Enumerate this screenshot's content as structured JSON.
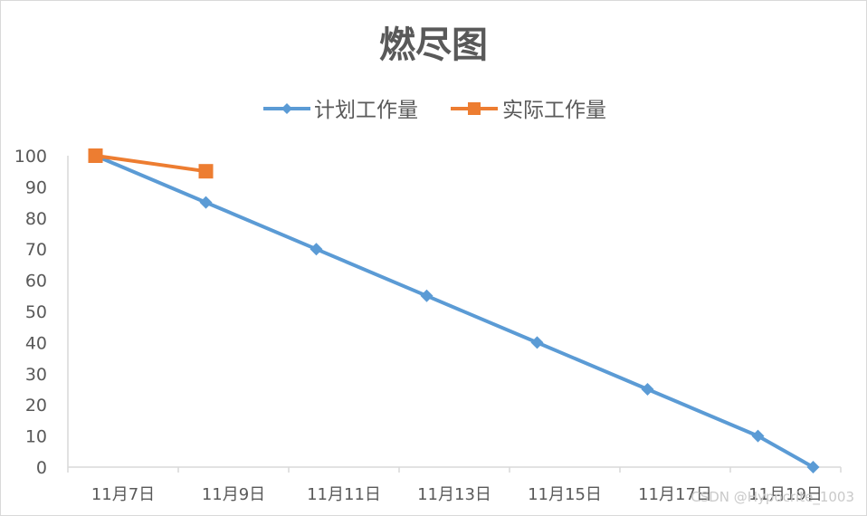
{
  "chart_data": {
    "type": "line",
    "title": "燃尽图",
    "xlabel": "",
    "ylabel": "",
    "ylim": [
      0,
      100
    ],
    "yticks": [
      "0",
      "10",
      "20",
      "30",
      "40",
      "50",
      "60",
      "70",
      "80",
      "90",
      "100"
    ],
    "x_tick_labels": [
      "11月7日",
      "11月9日",
      "11月11日",
      "11月13日",
      "11月15日",
      "11月17日",
      "11月19日"
    ],
    "xlim": [
      "2023-11-07",
      "2023-11-21"
    ],
    "legend_position": "top",
    "grid": false,
    "series": [
      {
        "name": "计划工作量",
        "color": "#5b9bd5",
        "marker": "diamond",
        "x": [
          "2023-11-07",
          "2023-11-09",
          "2023-11-11",
          "2023-11-13",
          "2023-11-15",
          "2023-11-17",
          "2023-11-19",
          "2023-11-20"
        ],
        "values": [
          100,
          85,
          70,
          55,
          40,
          25,
          10,
          0
        ]
      },
      {
        "name": "实际工作量",
        "color": "#ed7d31",
        "marker": "square",
        "x": [
          "2023-11-07",
          "2023-11-09"
        ],
        "values": [
          100,
          95
        ]
      }
    ]
  },
  "watermark": "CSDN @Hypocrite_1003"
}
